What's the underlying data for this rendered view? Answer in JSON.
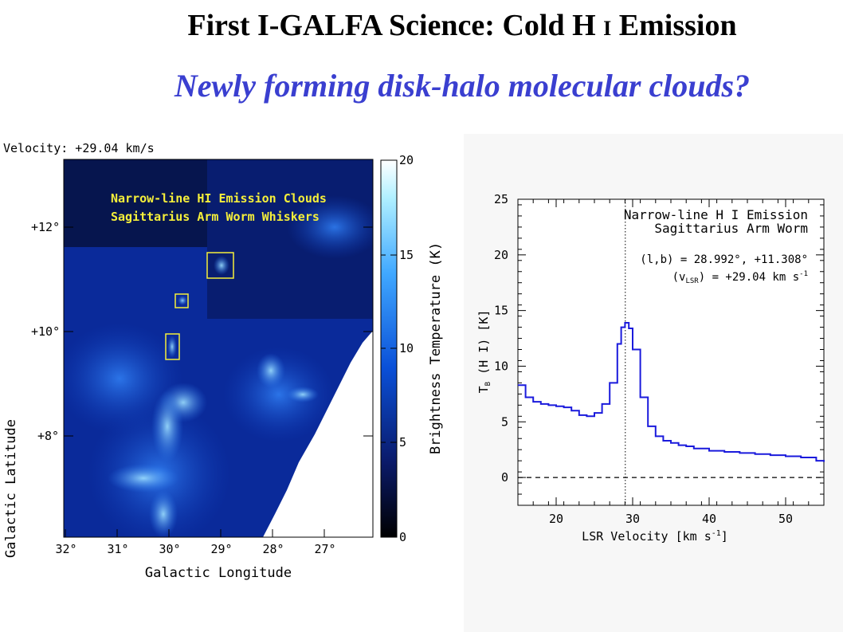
{
  "slide": {
    "title_main": "First I-GALFA Science: Cold H",
    "title_roman": "I",
    "title_end": "Emission",
    "subtitle": "Newly forming disk-halo molecular clouds?"
  },
  "map": {
    "velocity_label": "Velocity: +29.04 km/s",
    "annotation_line1": "Narrow-line HI Emission Clouds",
    "annotation_line2": "Sagittarius Arm Worm Whiskers",
    "annotation_color": "#f5ef3a",
    "xlabel": "Galactic Longitude",
    "ylabel": "Galactic Latitude",
    "x_ticks": [
      "32°",
      "31°",
      "30°",
      "29°",
      "28°",
      "27°"
    ],
    "y_ticks": [
      "+12°",
      "+10°",
      "+8°"
    ],
    "colorbar_label": "Brightness Temperature (K)",
    "colorbar_ticks": [
      "20",
      "15",
      "10",
      "5",
      "0"
    ]
  },
  "chart_data": {
    "type": "line",
    "title": "Narrow-line H I Emission",
    "subtitle": "Sagittarius Arm Worm",
    "annotation_lb": "(l,b) = 28.992°, +11.308°",
    "annotation_v": "(v",
    "annotation_v_sub": "LSR",
    "annotation_v_rest": ") = +29.04 km s",
    "annotation_v_sup": "-1",
    "xlabel": "LSR Velocity [km s",
    "xlabel_sup": "-1",
    "xlabel_end": "]",
    "ylabel": "T",
    "ylabel_sub": "B",
    "ylabel_rest": " (H I) [K]",
    "xlim": [
      15,
      55
    ],
    "ylim": [
      -2.5,
      25
    ],
    "x_ticks": [
      20,
      30,
      40,
      50
    ],
    "y_ticks": [
      0,
      5,
      10,
      15,
      20,
      25
    ],
    "vline_x": 29.04,
    "hline_y": 0,
    "line_color": "#1a1adc",
    "series": [
      {
        "x": [
          15,
          16,
          17,
          18,
          19,
          20,
          21,
          22,
          23,
          24,
          25,
          26,
          27,
          28,
          28.5,
          29,
          29.5,
          30,
          31,
          32,
          33,
          34,
          35,
          36,
          37,
          38,
          40,
          42,
          44,
          46,
          48,
          50,
          52,
          54,
          55
        ],
        "y": [
          8.3,
          7.2,
          6.8,
          6.6,
          6.5,
          6.4,
          6.3,
          6.0,
          5.6,
          5.5,
          5.8,
          6.6,
          8.5,
          12.0,
          13.5,
          13.9,
          13.4,
          11.5,
          7.2,
          4.6,
          3.7,
          3.3,
          3.1,
          2.9,
          2.8,
          2.6,
          2.4,
          2.3,
          2.2,
          2.1,
          2.0,
          1.9,
          1.8,
          1.5,
          1.4
        ]
      }
    ]
  }
}
